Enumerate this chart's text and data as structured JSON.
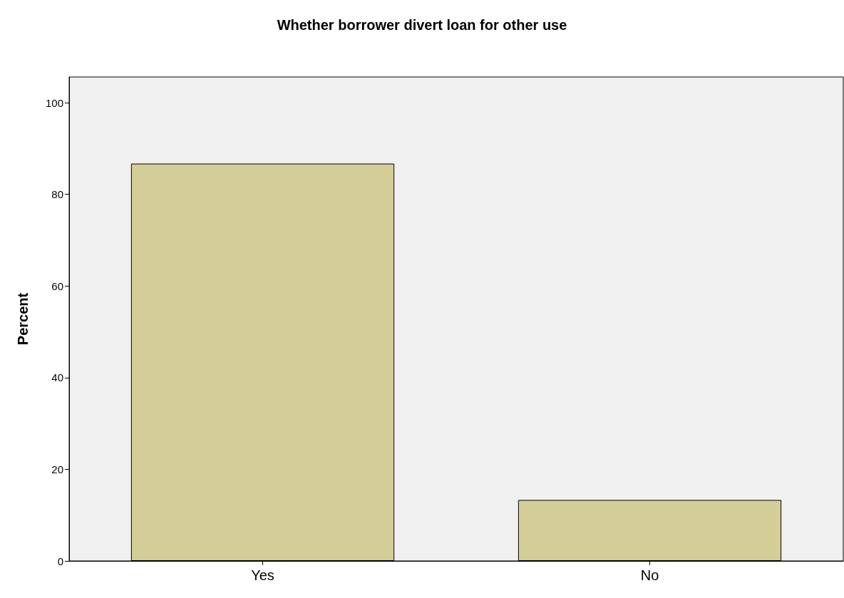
{
  "chart_data": {
    "type": "bar",
    "title": "Whether borrower divert loan for other use",
    "ylabel": "Percent",
    "categories": [
      "Yes",
      "No"
    ],
    "values": [
      86.7,
      13.3
    ],
    "color": "#d3ce97",
    "ylim": [
      0,
      105.6
    ],
    "yticks": [
      0,
      20,
      40,
      60,
      80,
      100
    ],
    "grid": false
  }
}
